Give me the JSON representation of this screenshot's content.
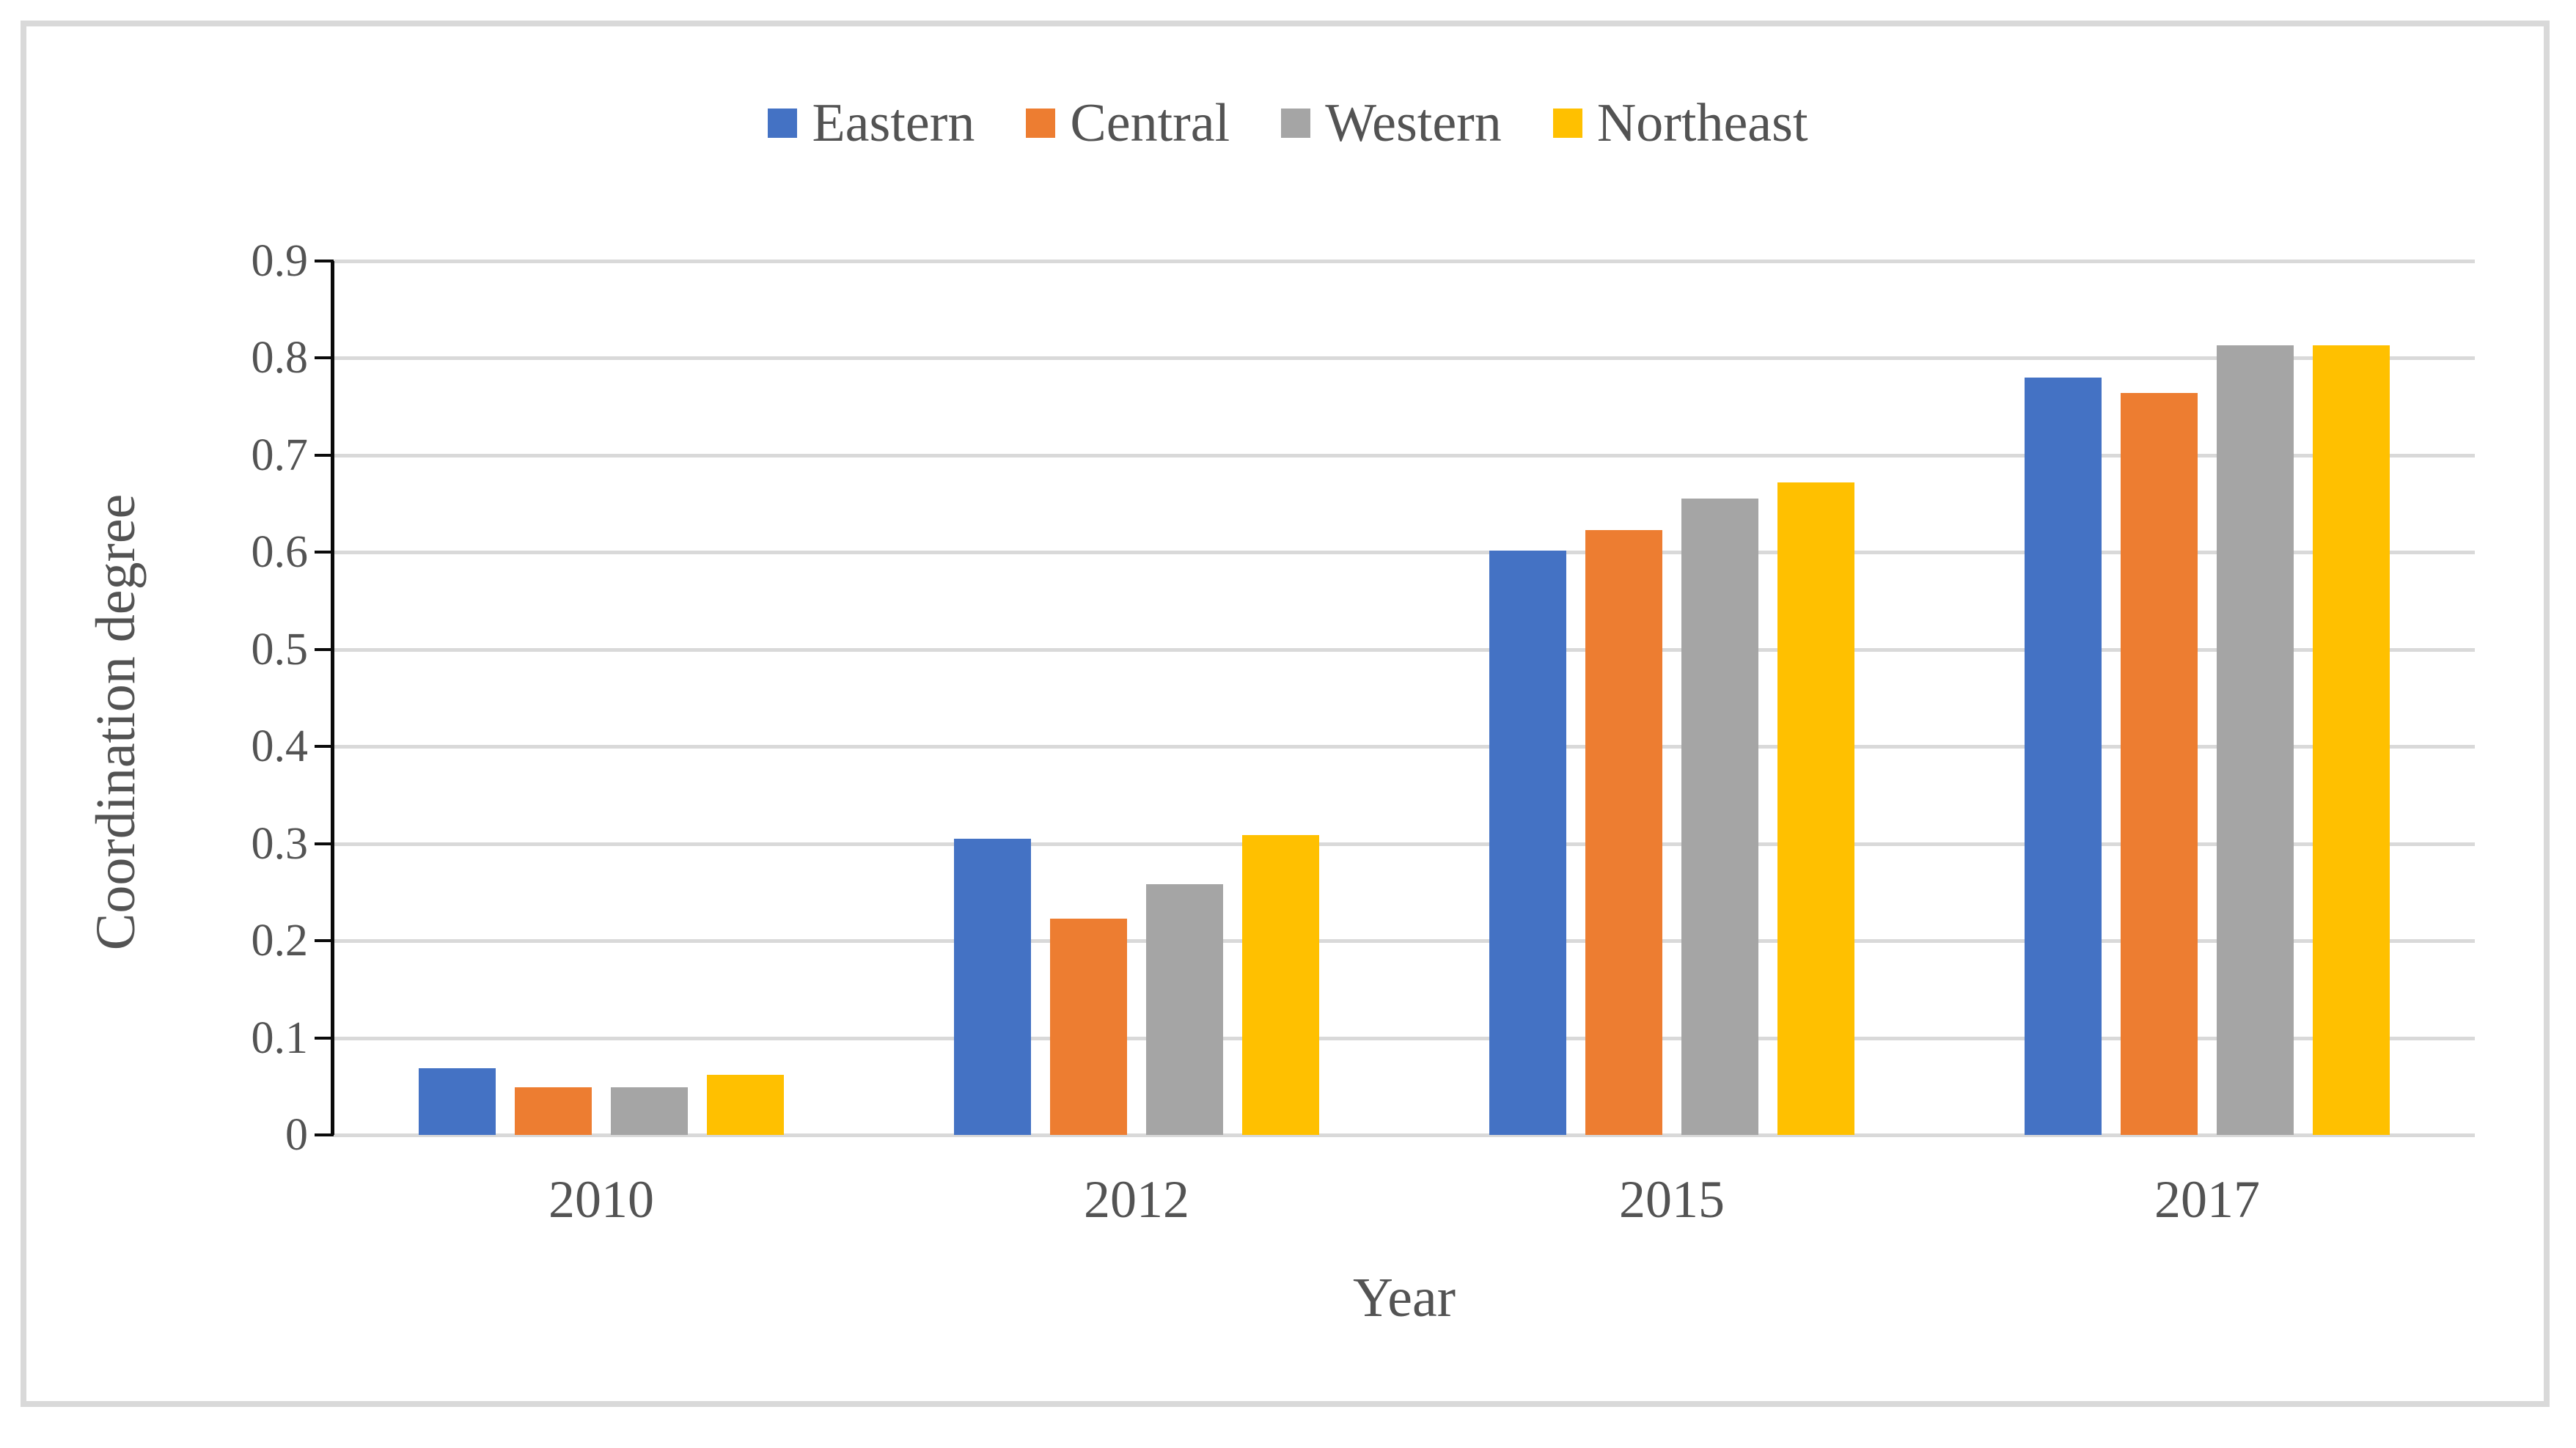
{
  "chart_data": {
    "type": "bar",
    "categories": [
      "2010",
      "2012",
      "2015",
      "2017"
    ],
    "series": [
      {
        "name": "Eastern",
        "color": "#4472C4",
        "values": [
          0.069,
          0.305,
          0.602,
          0.78
        ]
      },
      {
        "name": "Central",
        "color": "#ED7D31",
        "values": [
          0.049,
          0.223,
          0.623,
          0.764
        ]
      },
      {
        "name": "Western",
        "color": "#A5A5A5",
        "values": [
          0.049,
          0.258,
          0.655,
          0.813
        ]
      },
      {
        "name": "Northeast",
        "color": "#FFC000",
        "values": [
          0.062,
          0.309,
          0.672,
          0.813
        ]
      }
    ],
    "xlabel": "Year",
    "ylabel": "Coordination degree",
    "ylim": [
      0,
      0.9
    ],
    "ytick_step": 0.1,
    "yticks": [
      "0",
      "0.1",
      "0.2",
      "0.3",
      "0.4",
      "0.5",
      "0.6",
      "0.7",
      "0.8",
      "0.9"
    ],
    "grid": true,
    "legend_position": "top-center"
  },
  "style_colors": {
    "grid": "#D9D9D9",
    "border": "#D9D9D9",
    "axis": "#0b0b0b",
    "text": "#535353",
    "background": "#FFFFFF"
  }
}
